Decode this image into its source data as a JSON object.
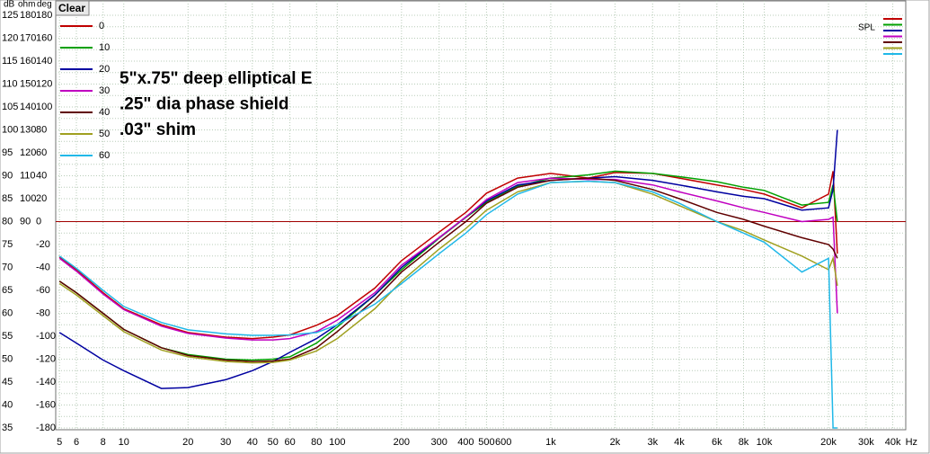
{
  "chart_data": {
    "type": "line",
    "button": "Clear",
    "axis_headers": [
      "dB",
      "ohm",
      "deg"
    ],
    "annotations": [
      "5\"x.75\" deep elliptical E",
      ".25\" dia phase shield",
      ".03\" shim"
    ],
    "side_legend_label": "SPL",
    "x_unit": "Hz",
    "log_x": true,
    "grid": true,
    "xlim": [
      4.8,
      46000
    ],
    "ylim": [
      35,
      125
    ],
    "ohm_lim": [
      0,
      180
    ],
    "deg_lim": [
      -180,
      180
    ],
    "reference_line": 80,
    "reference_color": "#a00000",
    "xticks": [
      5,
      6,
      8,
      10,
      20,
      30,
      40,
      50,
      60,
      80,
      100,
      200,
      300,
      400,
      500,
      600,
      {
        "value": 1000,
        "label": "1k"
      },
      {
        "value": 2000,
        "label": "2k"
      },
      {
        "value": 3000,
        "label": "3k"
      },
      {
        "value": 4000,
        "label": "4k"
      },
      {
        "value": 6000,
        "label": "6k"
      },
      {
        "value": 8000,
        "label": "8k"
      },
      {
        "value": 10000,
        "label": "10k"
      },
      {
        "value": 20000,
        "label": "20k"
      },
      {
        "value": 30000,
        "label": "30k"
      },
      {
        "value": 40000,
        "label": "40k"
      }
    ],
    "yticks": [
      125,
      120,
      115,
      110,
      105,
      100,
      95,
      90,
      85,
      80,
      75,
      70,
      65,
      60,
      55,
      50,
      45,
      40,
      35
    ],
    "ohm_ticks": [
      180,
      170,
      160,
      150,
      140,
      130,
      120,
      110,
      100,
      90
    ],
    "deg_ticks": [
      180,
      160,
      140,
      120,
      100,
      80,
      60,
      40,
      20,
      0,
      -20,
      -40,
      -60,
      -80,
      -100,
      -120,
      -140,
      -160,
      -180
    ],
    "x": [
      5,
      6,
      8,
      10,
      15,
      20,
      30,
      40,
      50,
      60,
      80,
      100,
      150,
      200,
      300,
      400,
      500,
      700,
      1000,
      1500,
      2000,
      3000,
      4000,
      6000,
      8000,
      10000,
      15000,
      20000,
      21000,
      22000
    ],
    "series": [
      {
        "name": "0",
        "color": "#c00000",
        "values": [
          72.3,
          69.5,
          64.5,
          61,
          57.5,
          55.8,
          54.8,
          54.5,
          54.8,
          55.3,
          57.4,
          59.5,
          65.5,
          71.5,
          77.7,
          82,
          86.2,
          89.5,
          90.5,
          89.5,
          90.7,
          90.5,
          89.5,
          88,
          87,
          86,
          83,
          86,
          91,
          73
        ]
      },
      {
        "name": "10",
        "color": "#00a000",
        "values": [
          67,
          64.5,
          60,
          56.5,
          52.5,
          51,
          50,
          49.8,
          50,
          50.5,
          53.5,
          57,
          64,
          69.5,
          76.4,
          80.9,
          84.2,
          87.7,
          89.5,
          90.2,
          91,
          90.5,
          89.8,
          88.7,
          87.5,
          86.8,
          83.6,
          84.2,
          88,
          80
        ]
      },
      {
        "name": "20",
        "color": "#0000a0",
        "values": [
          55.8,
          53.5,
          49.8,
          47.5,
          43.6,
          43.8,
          45.5,
          47.5,
          49.5,
          51.5,
          54.5,
          57.5,
          64,
          70,
          76.5,
          81,
          84.5,
          88,
          89,
          89.5,
          89.8,
          89,
          88,
          86.5,
          85.5,
          85,
          82.5,
          83,
          87,
          100
        ]
      },
      {
        "name": "30",
        "color": "#c000c0",
        "values": [
          72,
          69.2,
          64.2,
          60.8,
          57.2,
          55.6,
          54.6,
          54.2,
          54.2,
          54.5,
          56,
          58.5,
          64.5,
          70.5,
          76.5,
          81,
          84.8,
          88.5,
          89.5,
          89.2,
          89.2,
          88,
          86.5,
          84.5,
          83,
          82,
          80,
          80.5,
          81,
          60
        ]
      },
      {
        "name": "40",
        "color": "#600000",
        "values": [
          67,
          64.5,
          60,
          56.5,
          52.5,
          50.8,
          49.8,
          49.5,
          49.6,
          50,
          52.5,
          56,
          63,
          69,
          75.5,
          80,
          84,
          87.5,
          89,
          89.5,
          89,
          87,
          85,
          82,
          80.5,
          79,
          76.5,
          75,
          74,
          72
        ]
      },
      {
        "name": "50",
        "color": "#a0a020",
        "values": [
          66.5,
          64,
          59.5,
          56,
          52,
          50.5,
          49.5,
          49.2,
          49.3,
          49.8,
          51.8,
          54.5,
          61,
          67,
          74,
          78.5,
          82.5,
          86.5,
          88.5,
          88.8,
          88.5,
          86,
          83.5,
          80,
          78,
          76,
          72.5,
          69.5,
          72,
          66
        ]
      },
      {
        "name": "60",
        "color": "#20b8e8",
        "values": [
          72.5,
          69.8,
          65,
          61.5,
          58,
          56.4,
          55.5,
          55.2,
          55.2,
          55.3,
          55.8,
          57.5,
          62,
          66.5,
          73,
          77.5,
          81.5,
          86,
          88.5,
          88.8,
          88.5,
          86.5,
          84,
          80,
          77.5,
          75.5,
          69,
          72,
          35,
          35
        ]
      }
    ]
  }
}
